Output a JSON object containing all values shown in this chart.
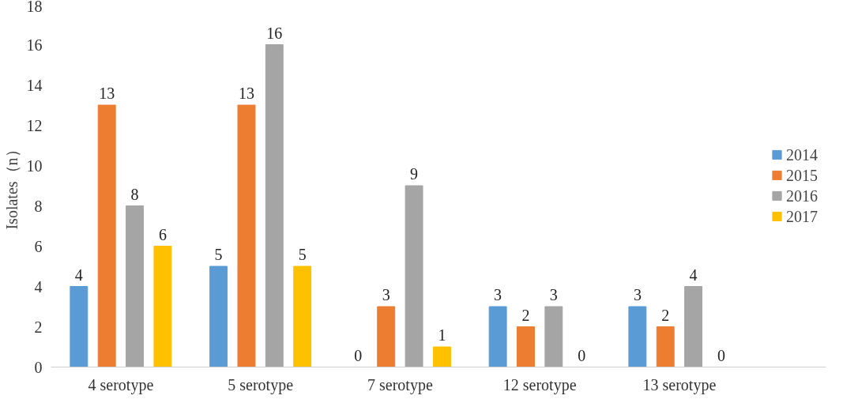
{
  "chart_data": {
    "type": "bar",
    "ylabel": "Isolates（n）",
    "categories": [
      "4 serotype",
      "5 serotype",
      "7 serotype",
      "12 serotype",
      "13 serotype"
    ],
    "series": [
      {
        "name": "2014",
        "color": "#5b9bd5",
        "values": [
          4,
          5,
          0,
          3,
          3
        ]
      },
      {
        "name": "2015",
        "color": "#ed7d31",
        "values": [
          13,
          13,
          3,
          2,
          2
        ]
      },
      {
        "name": "2016",
        "color": "#a5a5a5",
        "values": [
          8,
          16,
          9,
          3,
          4
        ]
      },
      {
        "name": "2017",
        "color": "#ffc000",
        "values": [
          6,
          5,
          1,
          0,
          0
        ]
      }
    ],
    "ylim": [
      0,
      18
    ],
    "yticks": [
      0,
      2,
      4,
      6,
      8,
      10,
      12,
      14,
      16,
      18
    ],
    "grid": false,
    "legend": "right",
    "data_labels": true
  }
}
